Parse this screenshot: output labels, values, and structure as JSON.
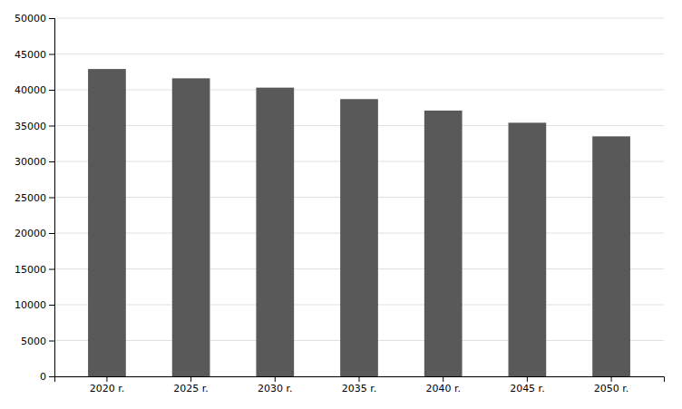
{
  "chart_data": {
    "type": "bar",
    "categories": [
      "2020 r.",
      "2025 r.",
      "2030 r.",
      "2035 r.",
      "2040 r.",
      "2045 r.",
      "2050 r."
    ],
    "values": [
      42900,
      41600,
      40300,
      38700,
      37100,
      35400,
      33500
    ],
    "color": "#595959",
    "ylim": [
      0,
      50000
    ],
    "yticks": [
      0,
      5000,
      10000,
      15000,
      20000,
      25000,
      30000,
      35000,
      40000,
      45000,
      50000
    ],
    "grid": true
  }
}
